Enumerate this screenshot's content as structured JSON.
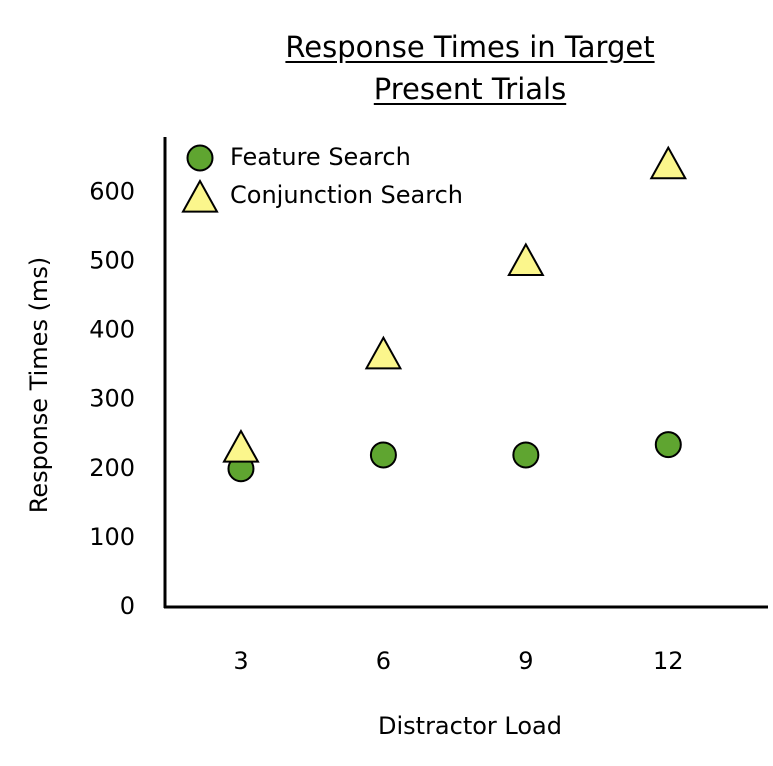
{
  "chart_data": {
    "type": "scatter",
    "title": "Response Times in Target Present Trials",
    "x_label": "Distractor Load",
    "y_label": "Response Times (ms)",
    "x": [
      3,
      6,
      9,
      12
    ],
    "series": [
      {
        "name": "Feature Search",
        "color": "#5fa530",
        "marker": "circle",
        "values": [
          200,
          220,
          220,
          235
        ]
      },
      {
        "name": "Conjunction Search",
        "color": "#fbf68c",
        "marker": "triangle",
        "values": [
          230,
          365,
          500,
          640
        ]
      }
    ],
    "xlim": [
      1.4,
      14.1
    ],
    "xticks": [
      3,
      6,
      9,
      12
    ],
    "ylim": [
      0,
      680
    ],
    "yticks": [
      0,
      100,
      200,
      300,
      400,
      500,
      600
    ],
    "grid": false,
    "legend": "upper left"
  }
}
